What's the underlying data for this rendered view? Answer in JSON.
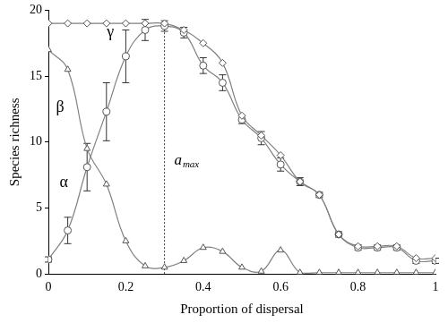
{
  "chart_data": {
    "type": "line",
    "x_label": "Proportion of dispersal",
    "y_label": "Species richness",
    "x": [
      0,
      0.05,
      0.1,
      0.15,
      0.2,
      0.25,
      0.3,
      0.35,
      0.4,
      0.45,
      0.5,
      0.55,
      0.6,
      0.65,
      0.7,
      0.75,
      0.8,
      0.85,
      0.9,
      0.95,
      1
    ],
    "series": [
      {
        "name": "γ",
        "color": "#808080",
        "marker": "diamond",
        "values": [
          19,
          19,
          19,
          19,
          19,
          19,
          19,
          18.5,
          17.5,
          16,
          12,
          10.5,
          9,
          7,
          6,
          3,
          2.1,
          2.1,
          2.1,
          1.2,
          1.2
        ]
      },
      {
        "name": "β",
        "color": "#808080",
        "marker": "triangle",
        "values": [
          17,
          15.5,
          9.5,
          6.8,
          2.5,
          0.6,
          0.5,
          1,
          2,
          1.7,
          0.5,
          0.2,
          1.8,
          0.1,
          0.1,
          0.1,
          0.1,
          0.1,
          0.1,
          0.1,
          0.1
        ]
      },
      {
        "name": "α",
        "color": "#808080",
        "marker": "circle",
        "values": [
          1.1,
          3.3,
          8.1,
          12.3,
          16.5,
          18.5,
          18.8,
          18.3,
          15.8,
          14.5,
          11.7,
          10.3,
          8.3,
          7,
          6,
          3,
          2,
          2,
          2,
          1,
          1
        ],
        "errors": [
          0.2,
          1,
          1.8,
          2.2,
          2,
          0.8,
          0.4,
          0.4,
          0.6,
          0.6,
          0.3,
          0.5,
          0.5,
          0.3,
          0.2,
          0.2,
          0.2,
          0.2,
          0.2,
          0.2,
          0.2
        ]
      }
    ],
    "reference_line": {
      "x": 0.3,
      "ymax": 19,
      "text": "a",
      "subscript": "max",
      "line_style": "dashed"
    },
    "xlim": [
      0,
      1
    ],
    "xticks": [
      0,
      0.2,
      0.4,
      0.6,
      0.8,
      1
    ],
    "ylim": [
      0,
      20
    ],
    "yticks": [
      0,
      5,
      10,
      15,
      20
    ],
    "grid": false
  }
}
